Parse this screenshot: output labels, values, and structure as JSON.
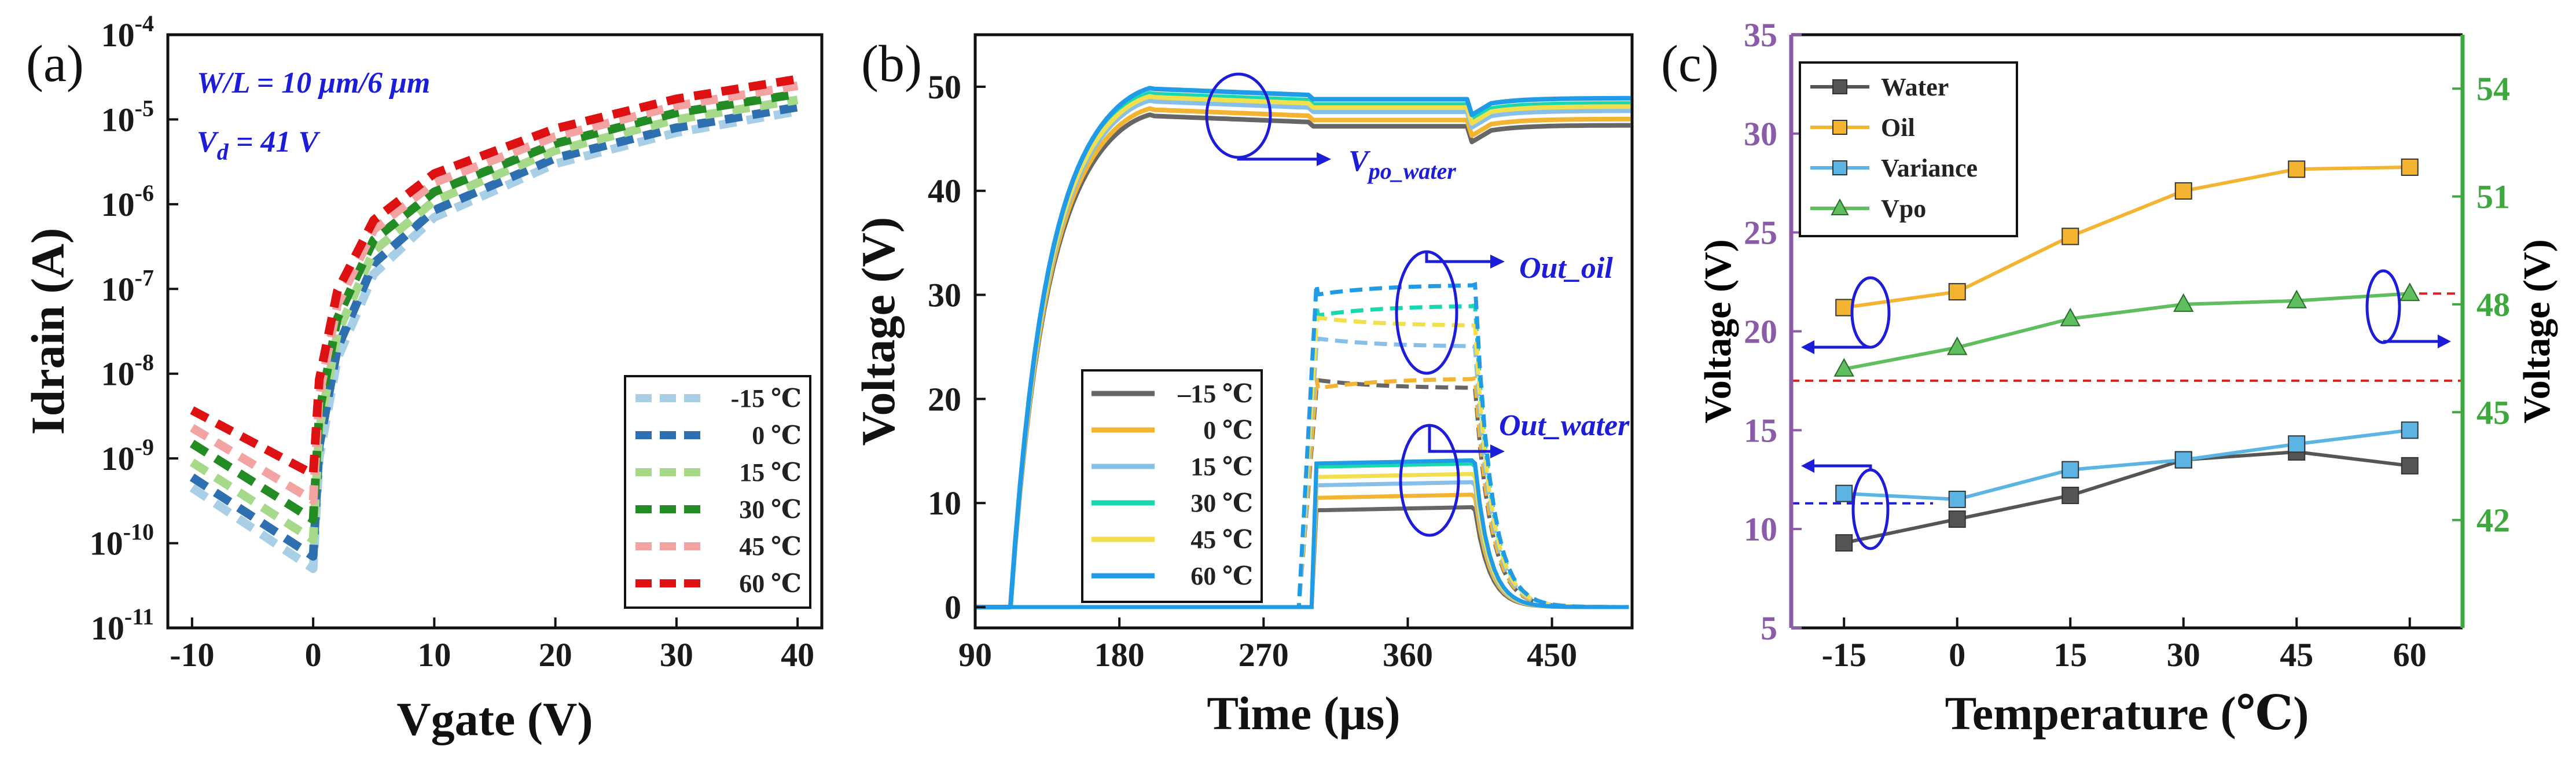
{
  "chart_data": [
    {
      "panel": "(a)",
      "type": "line",
      "y_scale": "log",
      "xlabel": "Vgate (V)",
      "ylabel": "Idrain (A)",
      "xlim": [
        -12,
        42
      ],
      "ylim": [
        1e-11,
        0.0001
      ],
      "xticks": [
        -10,
        0,
        10,
        20,
        30,
        40
      ],
      "xtick_labels": [
        "-10",
        "0",
        "10",
        "20",
        "30",
        "40"
      ],
      "yticks": [
        1e-11,
        1e-10,
        1e-09,
        1e-08,
        1e-07,
        1e-06,
        1e-05,
        0.0001
      ],
      "ytick_base": [
        "10",
        "10",
        "10",
        "10",
        "10",
        "10",
        "10",
        "10"
      ],
      "ytick_exp": [
        "-11",
        "-10",
        "-9",
        "-8",
        "-7",
        "-6",
        "-5",
        "-4"
      ],
      "annotations": [
        "W/L = 10 μm/6 μm",
        "V",
        "d",
        " = 41 V"
      ],
      "legend_position": "lower-right",
      "x": [
        -10,
        0,
        0.5,
        2,
        5,
        10,
        20,
        30,
        40
      ],
      "series": [
        {
          "name": "-15 ℃",
          "color": "#a8cfe6",
          "values": [
            4.5e-10,
            5e-11,
            1e-09,
            1.5e-08,
            1.5e-07,
            7e-07,
            3e-06,
            7e-06,
            1.25e-05
          ]
        },
        {
          "name": "0 ℃",
          "color": "#2e6fb0",
          "values": [
            6e-10,
            7e-11,
            1.4e-09,
            2e-08,
            2e-07,
            8.5e-07,
            3.5e-06,
            8e-06,
            1.4e-05
          ]
        },
        {
          "name": "15 ℃",
          "color": "#a6d98a",
          "values": [
            9e-10,
            1.1e-10,
            2.2e-09,
            3e-08,
            2.8e-07,
            1.1e-06,
            4.3e-06,
            1e-05,
            1.7e-05
          ]
        },
        {
          "name": "30 ℃",
          "color": "#238b23",
          "values": [
            1.5e-09,
            1.9e-10,
            3.5e-09,
            4.5e-08,
            3.8e-07,
            1.4e-06,
            5.2e-06,
            1.2e-05,
            2e-05
          ]
        },
        {
          "name": "45 ℃",
          "color": "#f4a3a3",
          "values": [
            2.3e-09,
            3.2e-10,
            5.5e-09,
            6.5e-08,
            5e-07,
            1.8e-06,
            6.3e-06,
            1.45e-05,
            2.5e-05
          ]
        },
        {
          "name": "60 ℃",
          "color": "#dd1111",
          "values": [
            3.7e-09,
            6.5e-10,
            8.5e-09,
            9.5e-08,
            6.5e-07,
            2.3e-06,
            7.8e-06,
            1.75e-05,
            3e-05
          ]
        }
      ]
    },
    {
      "panel": "(b)",
      "type": "line",
      "xlabel": "Time (μs)",
      "ylabel": "Voltage (V)",
      "xlim": [
        90,
        500
      ],
      "ylim": [
        -2,
        55
      ],
      "xticks": [
        90,
        180,
        270,
        360,
        450
      ],
      "xtick_labels": [
        "90",
        "180",
        "270",
        "360",
        "450"
      ],
      "yticks": [
        0,
        10,
        20,
        30,
        40,
        50
      ],
      "ytick_labels": [
        "0",
        "10",
        "20",
        "30",
        "40",
        "50"
      ],
      "annotations": [
        "V",
        "po_water",
        "Out_oil",
        "Out_water"
      ],
      "legend_position": "lower-center",
      "series": [
        {
          "name": "–15 ℃",
          "color": "#666666",
          "vpo_final": 46.0,
          "out_oil": 21.0,
          "out_water": 9.3
        },
        {
          "name": "0 ℃",
          "color": "#f2b431",
          "vpo_final": 46.6,
          "out_oil": 22.0,
          "out_water": 10.5
        },
        {
          "name": "15 ℃",
          "color": "#86bfe9",
          "vpo_final": 47.4,
          "out_oil": 25.0,
          "out_water": 11.7
        },
        {
          "name": "30 ℃",
          "color": "#19d8b0",
          "vpo_final": 48.1,
          "out_oil": 29.0,
          "out_water": 13.5
        },
        {
          "name": "45 ℃",
          "color": "#f2df4d",
          "vpo_final": 47.8,
          "out_oil": 27.0,
          "out_water": 12.5
        },
        {
          "name": "60 ℃",
          "color": "#1f9be8",
          "vpo_final": 48.6,
          "out_oil": 31.0,
          "out_water": 13.8
        }
      ]
    },
    {
      "panel": "(c)",
      "type": "line",
      "xlabel": "Temperature (℃)",
      "ylabel_left": "Voltage (V)",
      "ylabel_right": "Voltage (V)",
      "xlim": [
        -22,
        67
      ],
      "ylim_left": [
        5,
        35
      ],
      "ylim_right": [
        39,
        55.5
      ],
      "categories": [
        "-15",
        "0",
        "15",
        "30",
        "45",
        "60"
      ],
      "x": [
        -15,
        0,
        15,
        30,
        45,
        60
      ],
      "yticks_left": [
        5,
        10,
        15,
        20,
        25,
        30,
        35
      ],
      "ytick_labels_left": [
        "5",
        "10",
        "15",
        "20",
        "25",
        "30",
        "35"
      ],
      "yticks_right": [
        42,
        45,
        48,
        51,
        54
      ],
      "ytick_labels_right": [
        "42",
        "45",
        "48",
        "51",
        "54"
      ],
      "legend_position": "top-left",
      "reference_lines": {
        "red": 17.5,
        "blue": 11.3
      },
      "series": [
        {
          "name": "Water",
          "axis": "left",
          "marker": "square",
          "color": "#555555",
          "values": [
            9.3,
            10.5,
            11.7,
            13.5,
            13.9,
            13.2
          ]
        },
        {
          "name": "Oil",
          "axis": "left",
          "marker": "square",
          "color": "#f2b431",
          "values": [
            21.2,
            22.0,
            24.8,
            27.1,
            28.2,
            28.3
          ]
        },
        {
          "name": "Variance",
          "axis": "left",
          "marker": "square",
          "color": "#5cb4e5",
          "values": [
            11.8,
            11.5,
            13.0,
            13.5,
            14.3,
            15.0
          ]
        },
        {
          "name": "Vpo",
          "axis": "right",
          "marker": "triangle",
          "color": "#5fbf5f",
          "values": [
            46.2,
            46.8,
            47.6,
            48.0,
            48.1,
            48.3
          ]
        }
      ]
    }
  ]
}
